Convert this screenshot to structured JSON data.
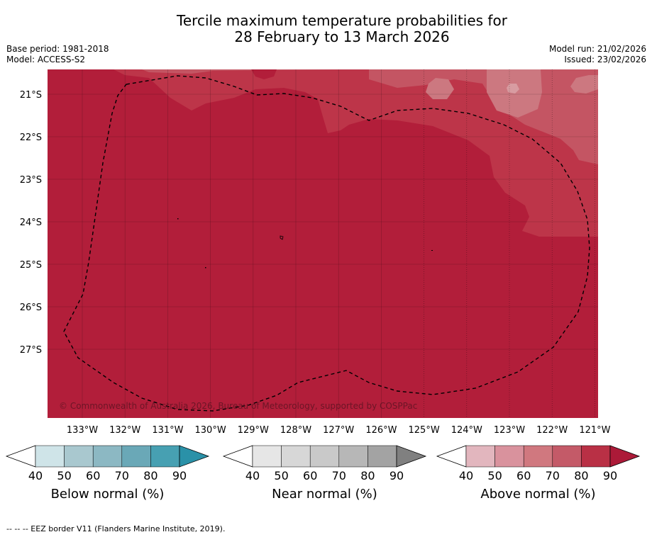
{
  "title_line1": "Tercile maximum temperature probabilities for",
  "title_line2": "28 February to 13 March 2026",
  "base_period": "Base period: 1981-2018",
  "model": "Model: ACCESS-S2",
  "model_run": "Model run: 21/02/2026",
  "issued": "Issued: 23/02/2026",
  "copyright": "© Commonwealth of Australia 2026, Bureau of Meteorology, supported by COSPPac",
  "footer": "--  --  -- EEZ border V11 (Flanders Marine Institute, 2019).",
  "lon_labels": [
    "133°W",
    "132°W",
    "131°W",
    "130°W",
    "129°W",
    "128°W",
    "127°W",
    "126°W",
    "125°W",
    "124°W",
    "123°W",
    "122°W",
    "121°W"
  ],
  "lat_labels": [
    "21°S",
    "22°S",
    "23°S",
    "24°S",
    "25°S",
    "26°S",
    "27°S"
  ],
  "colorbars": [
    {
      "name": "below-normal",
      "title": "Below normal (%)",
      "ticks": [
        "40",
        "50",
        "60",
        "70",
        "80",
        "90"
      ],
      "colors": [
        "#ffffff",
        "#cfe4e8",
        "#a9c8cf",
        "#8cb8c3",
        "#6aa8b7",
        "#47a0b2",
        "#2a91a8"
      ]
    },
    {
      "name": "near-normal",
      "title": "Near normal (%)",
      "ticks": [
        "40",
        "50",
        "60",
        "70",
        "80",
        "90"
      ],
      "colors": [
        "#ffffff",
        "#e6e6e6",
        "#d7d7d7",
        "#c9c9c9",
        "#b7b7b7",
        "#a3a3a3",
        "#808080"
      ]
    },
    {
      "name": "above-normal",
      "title": "Above normal (%)",
      "ticks": [
        "40",
        "50",
        "60",
        "70",
        "80",
        "90"
      ],
      "colors": [
        "#ffffff",
        "#e2b6be",
        "#d9929d",
        "#d0787f",
        "#c45a68",
        "#b93045",
        "#ac1a38"
      ]
    }
  ],
  "map_colors": {
    "base": "#b21e3a",
    "c70": "#bd3549",
    "c60": "#c45563",
    "c50": "#cc7880",
    "c40": "#d89ca1"
  }
}
